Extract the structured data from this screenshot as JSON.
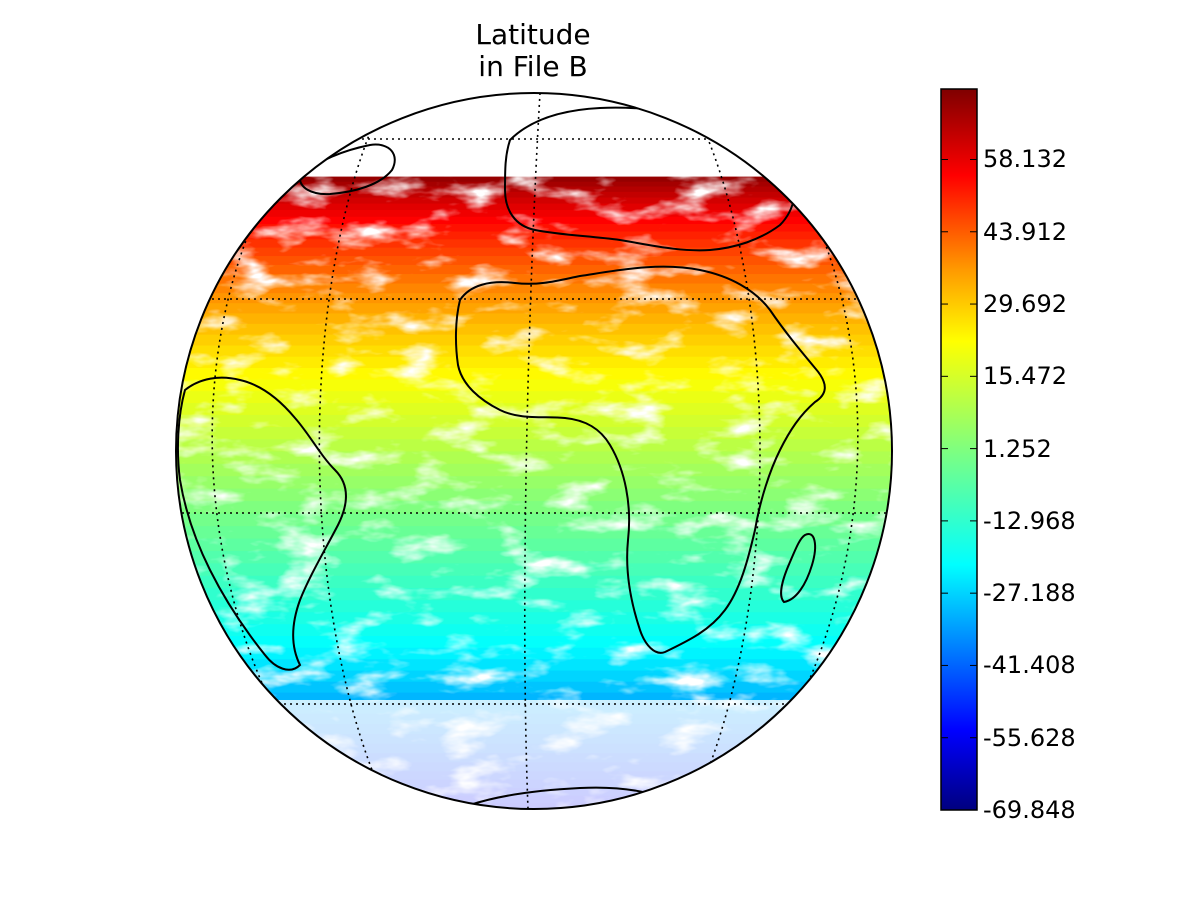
{
  "figure": {
    "title_line1": "Latitude",
    "title_line2": "in File B"
  },
  "colorbar": {
    "colormap": "jet",
    "min": -69.848,
    "max": 72.0,
    "tick_labels": [
      "58.132",
      "43.912",
      "29.692",
      "15.472",
      "1.252",
      "-12.968",
      "-27.188",
      "-41.408",
      "-55.628",
      "-69.848"
    ],
    "tick_values": [
      58.132,
      43.912,
      29.692,
      15.472,
      1.252,
      -12.968,
      -27.188,
      -41.408,
      -55.628,
      -69.848
    ],
    "colors": [
      "#00007f",
      "#0000ff",
      "#007fff",
      "#00ffff",
      "#7fff7f",
      "#ffff00",
      "#ff7f00",
      "#ff0000",
      "#7f0000"
    ]
  },
  "map": {
    "projection": "orthographic",
    "center_lon": 0,
    "center_lat": 0,
    "graticule_lat": [
      -60,
      -30,
      0,
      30,
      60
    ],
    "graticule_lon": [
      -60,
      -30,
      0,
      30,
      60
    ],
    "ocean_color": "#ffffff",
    "coastline_color": "#000000"
  }
}
